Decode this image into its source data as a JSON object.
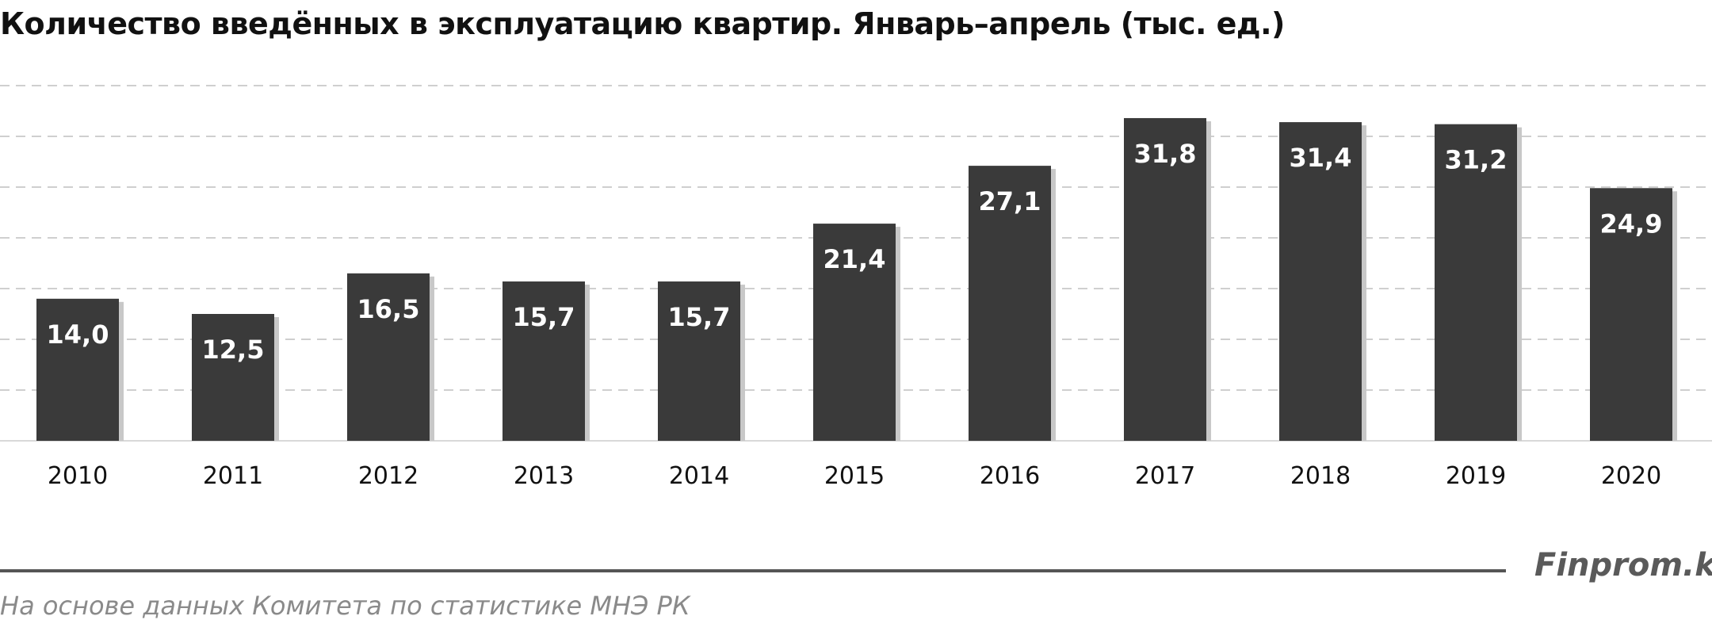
{
  "chart_data": {
    "type": "bar",
    "title": "Количество введённых в эксплуатацию квартир. Январь–апрель  (тыс. ед.)",
    "categories": [
      "2010",
      "2011",
      "2012",
      "2013",
      "2014",
      "2015",
      "2016",
      "2017",
      "2018",
      "2019",
      "2020"
    ],
    "values": [
      14.0,
      12.5,
      16.5,
      15.7,
      15.7,
      21.4,
      27.1,
      31.8,
      31.4,
      31.2,
      24.9
    ],
    "value_labels": [
      "14,0",
      "12,5",
      "16,5",
      "15,7",
      "15,7",
      "21,4",
      "27,1",
      "31,8",
      "31,4",
      "31,2",
      "24,9"
    ],
    "ylim": [
      0,
      35
    ],
    "grid": true,
    "bar_color": "#3a3a3a",
    "label_color": "#ffffff"
  },
  "footer": {
    "brand": "Finprom.kz",
    "source": "На основе данных  Комитета по статистике МНЭ РК"
  }
}
